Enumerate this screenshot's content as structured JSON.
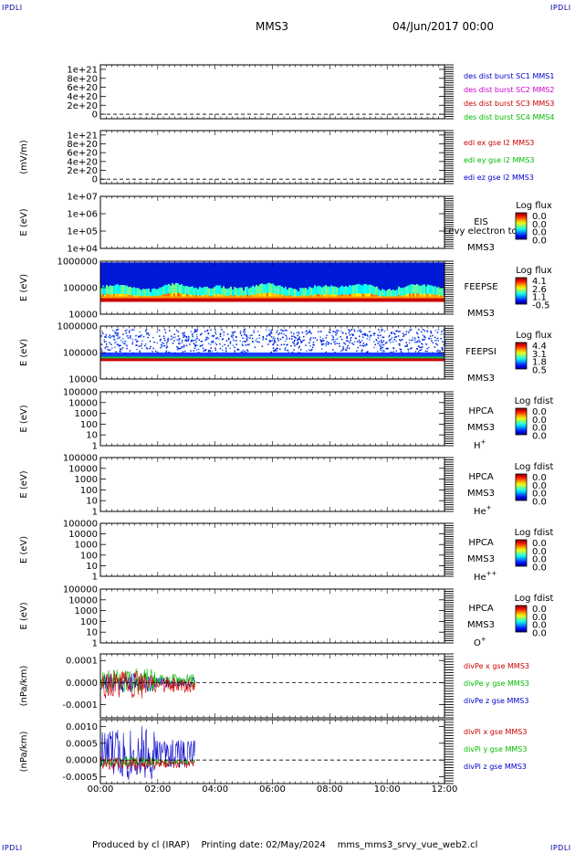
{
  "header": {
    "title": "MMS3",
    "datetime": "04/Jun/2017 00:00",
    "corner_label": "IPDLI"
  },
  "footer": {
    "producer": "Produced by cl (IRAP)",
    "printing": "Printing date: 02/May/2024",
    "script": "mms_mms3_srvy_vue_web2.cl"
  },
  "chart_data": {
    "type": "multi-panel timeseries",
    "x": {
      "ticks": [
        "00:00",
        "02:00",
        "04:00",
        "06:00",
        "08:00",
        "10:00",
        "12:00"
      ],
      "range_hours": [
        0,
        12
      ],
      "data_end_hours": 3.3
    },
    "panels": [
      {
        "id": "des",
        "type": "line",
        "ylabel": "",
        "ytick_labels": [
          "1e+21",
          "8e+20",
          "6e+20",
          "4e+20",
          "2e+20",
          "0"
        ],
        "yticks": [
          1e+21,
          8e+20,
          6e+20,
          4e+20,
          2e+20,
          0
        ],
        "ylim": [
          -1e+20,
          1.1e+21
        ],
        "zero_line": true,
        "legend": [
          {
            "label": "des dist burst SC1 MMS1",
            "color": "#0000cc"
          },
          {
            "label": "des dist burst SC2 MMS2",
            "color": "#cc00cc"
          },
          {
            "label": "des dist burst SC3 MMS3",
            "color": "#cc0000"
          },
          {
            "label": "des dist burst SC4 MMS4",
            "color": "#00bb00"
          }
        ]
      },
      {
        "id": "edi",
        "type": "line",
        "ylabel": "(mV/m)",
        "ytick_labels": [
          "1e+21",
          "8e+20",
          "6e+20",
          "4e+20",
          "2e+20",
          "0"
        ],
        "yticks": [
          1e+21,
          8e+20,
          6e+20,
          4e+20,
          2e+20,
          0
        ],
        "ylim": [
          -1e+20,
          1.1e+21
        ],
        "zero_line": true,
        "legend": [
          {
            "label": "edi ex gse l2 MMS3",
            "color": "#cc0000"
          },
          {
            "label": "edi ey gse l2 MMS3",
            "color": "#00bb00"
          },
          {
            "label": "edi ez gse l2 MMS3",
            "color": "#0000cc"
          }
        ]
      },
      {
        "id": "eis",
        "type": "heatmap",
        "ylabel": "E (eV)",
        "ytick_labels": [
          "1e+07",
          "1e+06",
          "1e+05",
          "1e+04"
        ],
        "yticks": [
          10000000.0,
          1000000.0,
          100000.0,
          10000.0
        ],
        "ylim": [
          10000.0,
          10000000.0
        ],
        "log": true,
        "instrument": "EIS",
        "subtitle": "Levy electron tof",
        "sc": "MMS3",
        "colorbar_title": "Log flux",
        "colorbar_ticks": [
          "0.0",
          "0.0",
          "0.0",
          "0.0"
        ]
      },
      {
        "id": "feepse",
        "type": "heatmap",
        "ylabel": "E (eV)",
        "ytick_labels": [
          "1000000",
          "100000",
          "10000"
        ],
        "yticks": [
          1000000,
          100000,
          10000
        ],
        "ylim": [
          10000,
          1000000
        ],
        "log": true,
        "instrument": "FEEPSE",
        "sc": "MMS3",
        "colorbar_title": "Log flux",
        "colorbar_ticks": [
          "4.1",
          "2.6",
          "1.1",
          "-0.5"
        ]
      },
      {
        "id": "feepsi",
        "type": "heatmap",
        "ylabel": "E (eV)",
        "ytick_labels": [
          "1000000",
          "100000",
          "10000"
        ],
        "yticks": [
          1000000,
          100000,
          10000
        ],
        "ylim": [
          10000,
          1000000
        ],
        "log": true,
        "instrument": "FEEPSI",
        "sc": "MMS3",
        "colorbar_title": "Log flux",
        "colorbar_ticks": [
          "4.4",
          "3.1",
          "1.8",
          "0.5"
        ]
      },
      {
        "id": "hpca_h",
        "type": "heatmap",
        "ylabel": "E (eV)",
        "ytick_labels": [
          "100000",
          "10000",
          "1000",
          "100",
          "10",
          "1"
        ],
        "yticks": [
          100000,
          10000,
          1000,
          100,
          10,
          1
        ],
        "ylim": [
          1,
          100000
        ],
        "log": true,
        "instrument": "HPCA",
        "sc": "MMS3",
        "species": "H",
        "species_sup": "+",
        "colorbar_title": "Log fdist",
        "colorbar_ticks": [
          "0.0",
          "0.0",
          "0.0",
          "0.0"
        ]
      },
      {
        "id": "hpca_he",
        "type": "heatmap",
        "ylabel": "E (eV)",
        "ytick_labels": [
          "100000",
          "10000",
          "1000",
          "100",
          "10",
          "1"
        ],
        "yticks": [
          100000,
          10000,
          1000,
          100,
          10,
          1
        ],
        "ylim": [
          1,
          100000
        ],
        "log": true,
        "instrument": "HPCA",
        "sc": "MMS3",
        "species": "He",
        "species_sup": "+",
        "colorbar_title": "Log fdist",
        "colorbar_ticks": [
          "0.0",
          "0.0",
          "0.0",
          "0.0"
        ]
      },
      {
        "id": "hpca_hepp",
        "type": "heatmap",
        "ylabel": "E (eV)",
        "ytick_labels": [
          "100000",
          "10000",
          "1000",
          "100",
          "10",
          "1"
        ],
        "yticks": [
          100000,
          10000,
          1000,
          100,
          10,
          1
        ],
        "ylim": [
          1,
          100000
        ],
        "log": true,
        "instrument": "HPCA",
        "sc": "MMS3",
        "species": "He",
        "species_sup": "++",
        "colorbar_title": "Log fdist",
        "colorbar_ticks": [
          "0.0",
          "0.0",
          "0.0",
          "0.0"
        ]
      },
      {
        "id": "hpca_o",
        "type": "heatmap",
        "ylabel": "E (eV)",
        "ytick_labels": [
          "100000",
          "10000",
          "1000",
          "100",
          "10",
          "1"
        ],
        "yticks": [
          100000,
          10000,
          1000,
          100,
          10,
          1
        ],
        "ylim": [
          1,
          100000
        ],
        "log": true,
        "instrument": "HPCA",
        "sc": "MMS3",
        "species": "O",
        "species_sup": "+",
        "colorbar_title": "Log fdist",
        "colorbar_ticks": [
          "0.0",
          "0.0",
          "0.0",
          "0.0"
        ]
      },
      {
        "id": "divpe",
        "type": "line",
        "ylabel": "(nPa/km)",
        "ytick_labels": [
          "0.0001",
          "0.0000",
          "-0.0001"
        ],
        "yticks": [
          0.0001,
          0,
          -0.0001
        ],
        "ylim": [
          -0.00016,
          0.00013
        ],
        "zero_line": true,
        "legend": [
          {
            "label": "divPe x gse MMS3",
            "color": "#cc0000"
          },
          {
            "label": "divPe y gse MMS3",
            "color": "#00bb00"
          },
          {
            "label": "divPe z gse MMS3",
            "color": "#0000cc"
          }
        ]
      },
      {
        "id": "divpi",
        "type": "line",
        "ylabel": "(nPa/km)",
        "ytick_labels": [
          "0.0010",
          "0.0005",
          "0.0000",
          "-0.0005"
        ],
        "yticks": [
          0.001,
          0.0005,
          0,
          -0.0005
        ],
        "ylim": [
          -0.0007,
          0.0012
        ],
        "zero_line": true,
        "legend": [
          {
            "label": "divPi x gse MMS3",
            "color": "#cc0000"
          },
          {
            "label": "divPi y gse MMS3",
            "color": "#00bb00"
          },
          {
            "label": "divPi z gse MMS3",
            "color": "#0000cc"
          }
        ]
      }
    ]
  }
}
